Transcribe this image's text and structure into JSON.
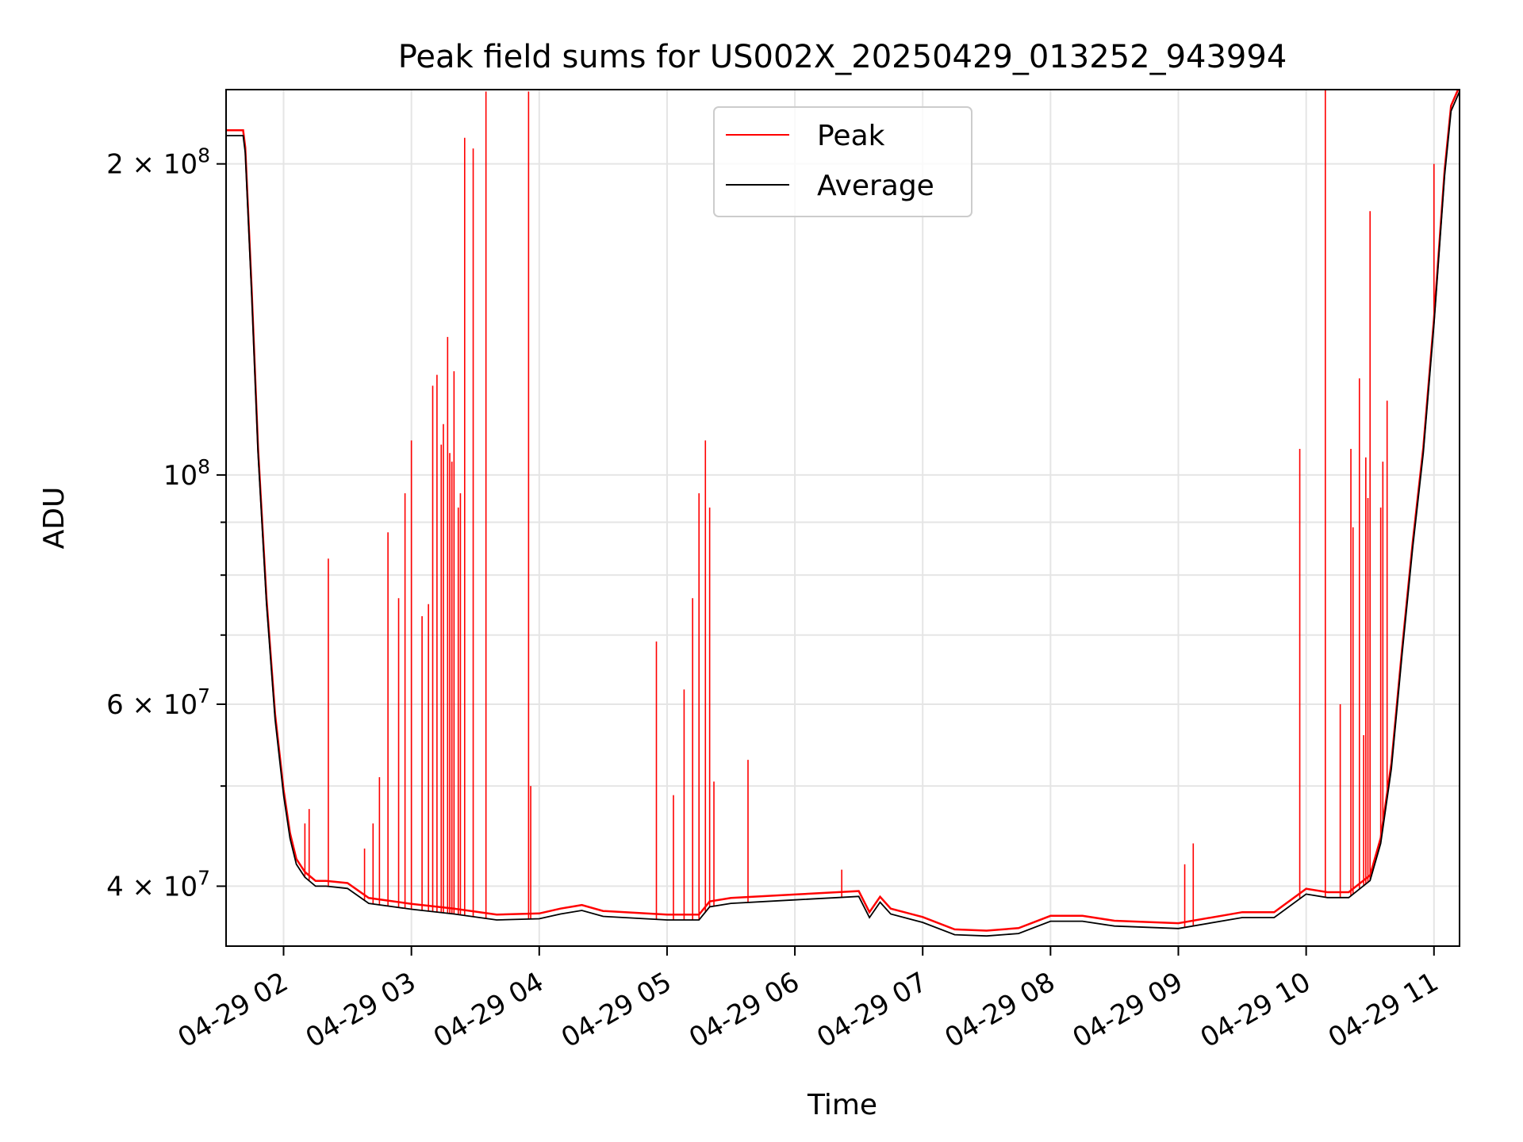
{
  "chart_data": {
    "type": "line",
    "title": "Peak field sums for US002X_20250429_013252_943994",
    "xlabel": "Time",
    "ylabel": "ADU",
    "y_scale": "log",
    "ylim": [
      35000000,
      236000000
    ],
    "xlim": [
      "2025-04-29 01:33:00",
      "2025-04-29 11:12:00"
    ],
    "grid": true,
    "legend_position": "top-center",
    "x_tick_labels": [
      "04-29 02",
      "04-29 03",
      "04-29 04",
      "04-29 05",
      "04-29 06",
      "04-29 07",
      "04-29 08",
      "04-29 09",
      "04-29 10",
      "04-29 11"
    ],
    "x_tick_values": [
      "2025-04-29 02:00",
      "2025-04-29 03:00",
      "2025-04-29 04:00",
      "2025-04-29 05:00",
      "2025-04-29 06:00",
      "2025-04-29 07:00",
      "2025-04-29 08:00",
      "2025-04-29 09:00",
      "2025-04-29 10:00",
      "2025-04-29 11:00"
    ],
    "y_ticks": [
      {
        "value": 40000000,
        "mantissa": "4",
        "times": "×",
        "base": "10",
        "exp": "7"
      },
      {
        "value": 60000000,
        "mantissa": "6",
        "times": "×",
        "base": "10",
        "exp": "7"
      },
      {
        "value": 100000000,
        "mantissa": "",
        "times": "",
        "base": "10",
        "exp": "8"
      },
      {
        "value": 200000000,
        "mantissa": "2",
        "times": "×",
        "base": "10",
        "exp": "8"
      }
    ],
    "y_minor_ticks": [
      50000000,
      70000000,
      80000000,
      90000000
    ],
    "series": [
      {
        "name": "Average",
        "color": "#000000",
        "x": [
          "2025-04-29 01:33",
          "2025-04-29 01:41",
          "2025-04-29 01:42",
          "2025-04-29 01:45",
          "2025-04-29 01:48",
          "2025-04-29 01:52",
          "2025-04-29 01:56",
          "2025-04-29 02:00",
          "2025-04-29 02:03",
          "2025-04-29 02:06",
          "2025-04-29 02:10",
          "2025-04-29 02:15",
          "2025-04-29 02:20",
          "2025-04-29 02:30",
          "2025-04-29 02:40",
          "2025-04-29 03:00",
          "2025-04-29 03:20",
          "2025-04-29 03:40",
          "2025-04-29 04:00",
          "2025-04-29 04:10",
          "2025-04-29 04:20",
          "2025-04-29 04:30",
          "2025-04-29 05:00",
          "2025-04-29 05:15",
          "2025-04-29 05:20",
          "2025-04-29 05:30",
          "2025-04-29 06:00",
          "2025-04-29 06:20",
          "2025-04-29 06:30",
          "2025-04-29 06:35",
          "2025-04-29 06:40",
          "2025-04-29 06:45",
          "2025-04-29 07:00",
          "2025-04-29 07:15",
          "2025-04-29 07:30",
          "2025-04-29 07:45",
          "2025-04-29 08:00",
          "2025-04-29 08:15",
          "2025-04-29 08:30",
          "2025-04-29 09:00",
          "2025-04-29 09:30",
          "2025-04-29 09:45",
          "2025-04-29 10:00",
          "2025-04-29 10:10",
          "2025-04-29 10:20",
          "2025-04-29 10:30",
          "2025-04-29 10:35",
          "2025-04-29 10:40",
          "2025-04-29 10:45",
          "2025-04-29 10:50",
          "2025-04-29 10:55",
          "2025-04-29 11:00",
          "2025-04-29 11:05",
          "2025-04-29 11:08",
          "2025-04-29 11:12"
        ],
        "values": [
          213000000,
          213000000,
          205000000,
          150000000,
          105000000,
          75000000,
          58000000,
          49000000,
          44500000,
          42000000,
          40800000,
          40000000,
          40000000,
          39800000,
          38500000,
          38000000,
          37600000,
          37100000,
          37200000,
          37600000,
          37900000,
          37400000,
          37100000,
          37100000,
          38200000,
          38500000,
          38800000,
          39000000,
          39100000,
          37300000,
          38600000,
          37600000,
          36900000,
          35900000,
          35800000,
          36000000,
          37000000,
          37000000,
          36600000,
          36400000,
          37300000,
          37300000,
          39300000,
          39000000,
          39000000,
          40500000,
          44000000,
          52000000,
          67000000,
          85000000,
          105000000,
          140000000,
          195000000,
          225000000,
          235000000
        ]
      },
      {
        "name": "Peak",
        "color": "#ff0000",
        "x": [
          "2025-04-29 02:10",
          "2025-04-29 02:12",
          "2025-04-29 02:21",
          "2025-04-29 02:38",
          "2025-04-29 02:42",
          "2025-04-29 02:45",
          "2025-04-29 02:49",
          "2025-04-29 02:54",
          "2025-04-29 02:57",
          "2025-04-29 03:00",
          "2025-04-29 03:05",
          "2025-04-29 03:08",
          "2025-04-29 03:10",
          "2025-04-29 03:12",
          "2025-04-29 03:14",
          "2025-04-29 03:15",
          "2025-04-29 03:17",
          "2025-04-29 03:18",
          "2025-04-29 03:19",
          "2025-04-29 03:20",
          "2025-04-29 03:22",
          "2025-04-29 03:23",
          "2025-04-29 03:25",
          "2025-04-29 03:29",
          "2025-04-29 03:35",
          "2025-04-29 03:55",
          "2025-04-29 03:56",
          "2025-04-29 04:55",
          "2025-04-29 05:03",
          "2025-04-29 05:08",
          "2025-04-29 05:12",
          "2025-04-29 05:15",
          "2025-04-29 05:18",
          "2025-04-29 05:20",
          "2025-04-29 05:22",
          "2025-04-29 05:38",
          "2025-04-29 06:22",
          "2025-04-29 09:03",
          "2025-04-29 09:07",
          "2025-04-29 09:57",
          "2025-04-29 10:09",
          "2025-04-29 10:16",
          "2025-04-29 10:21",
          "2025-04-29 10:22",
          "2025-04-29 10:25",
          "2025-04-29 10:27",
          "2025-04-29 10:28",
          "2025-04-29 10:29",
          "2025-04-29 10:30",
          "2025-04-29 10:35",
          "2025-04-29 10:36",
          "2025-04-29 10:38",
          "2025-04-29 11:00"
        ],
        "values": [
          46000000,
          47500000,
          83000000,
          43500000,
          46000000,
          51000000,
          88000000,
          76000000,
          96000000,
          108000000,
          73000000,
          75000000,
          122000000,
          125000000,
          107000000,
          112000000,
          136000000,
          105000000,
          103000000,
          126000000,
          93000000,
          96000000,
          212000000,
          207000000,
          235000000,
          235000000,
          50000000,
          69000000,
          49000000,
          62000000,
          76000000,
          96000000,
          108000000,
          93000000,
          50500000,
          53000000,
          41500000,
          42000000,
          44000000,
          106000000,
          236000000,
          60000000,
          106000000,
          89000000,
          124000000,
          56000000,
          104000000,
          95000000,
          180000000,
          93000000,
          103000000,
          118000000,
          200000000
        ]
      }
    ]
  }
}
